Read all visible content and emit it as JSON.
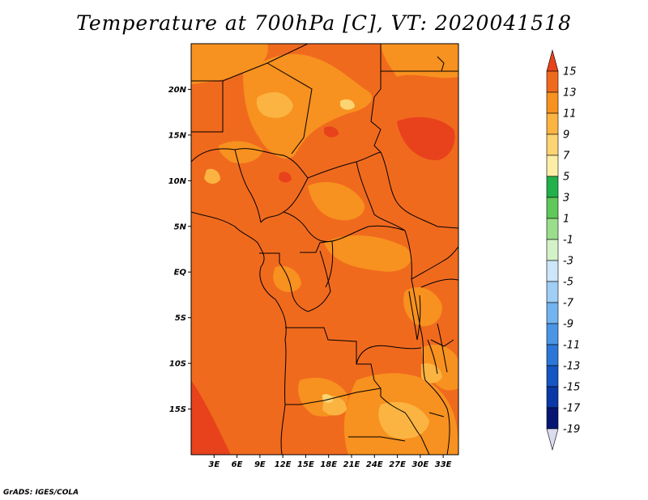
{
  "title": "Temperature at 700hPa [C], VT: 2020041518",
  "credit": "GrADS: IGES/COLA",
  "map": {
    "lon_range": [
      0,
      35
    ],
    "lat_range": [
      -20,
      25
    ],
    "lon_ticks": [
      {
        "value": 3,
        "label": "3E"
      },
      {
        "value": 6,
        "label": "6E"
      },
      {
        "value": 9,
        "label": "9E"
      },
      {
        "value": 12,
        "label": "12E"
      },
      {
        "value": 15,
        "label": "15E"
      },
      {
        "value": 18,
        "label": "18E"
      },
      {
        "value": 21,
        "label": "21E"
      },
      {
        "value": 24,
        "label": "24E"
      },
      {
        "value": 27,
        "label": "27E"
      },
      {
        "value": 30,
        "label": "30E"
      },
      {
        "value": 33,
        "label": "33E"
      }
    ],
    "lat_ticks": [
      {
        "value": 20,
        "label": "20N"
      },
      {
        "value": 15,
        "label": "15N"
      },
      {
        "value": 10,
        "label": "10N"
      },
      {
        "value": 5,
        "label": "5N"
      },
      {
        "value": 0,
        "label": "EQ"
      },
      {
        "value": -5,
        "label": "5S"
      },
      {
        "value": -10,
        "label": "10S"
      },
      {
        "value": -15,
        "label": "15S"
      }
    ]
  },
  "colorbar": {
    "levels": [
      "15",
      "13",
      "11",
      "9",
      "7",
      "5",
      "3",
      "1",
      "-1",
      "-3",
      "-5",
      "-7",
      "-9",
      "-11",
      "-13",
      "-15",
      "-17",
      "-19"
    ],
    "colors": [
      "#e8421c",
      "#f06a1e",
      "#f7911f",
      "#fbb442",
      "#fcd472",
      "#fdeea6",
      "#22b04a",
      "#5ec85a",
      "#9ade8c",
      "#d4f2c8",
      "#cce6fa",
      "#a0cef5",
      "#73b3ef",
      "#4a95e6",
      "#2c76d8",
      "#1555c4",
      "#0a38a6",
      "#061672",
      "#dcdcf0"
    ]
  }
}
